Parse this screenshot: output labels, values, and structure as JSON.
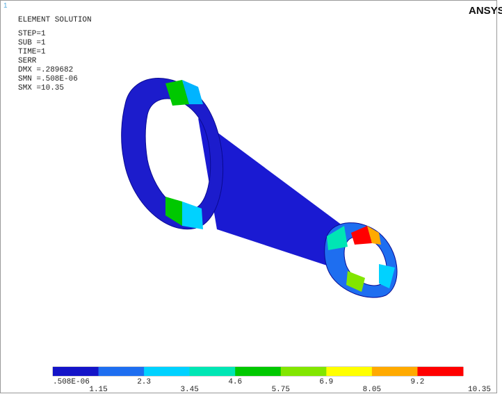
{
  "window": {
    "number": "1",
    "logo": "ANSYS"
  },
  "header": {
    "title": "ELEMENT SOLUTION",
    "lines": [
      "STEP=1",
      "SUB =1",
      "TIME=1",
      "SERR",
      "DMX =.289682",
      "SMN =.508E-06",
      "SMX =10.35"
    ]
  },
  "legend": {
    "colors": [
      "#1414c8",
      "#1e6ef0",
      "#00d2ff",
      "#00e6b4",
      "#00c800",
      "#82e600",
      "#ffff00",
      "#ffaa00",
      "#ff0000"
    ],
    "labels": [
      ".508E-06",
      "1.15",
      "2.3",
      "3.45",
      "4.6",
      "5.75",
      "6.9",
      "8.05",
      "9.2",
      "10.35"
    ]
  }
}
